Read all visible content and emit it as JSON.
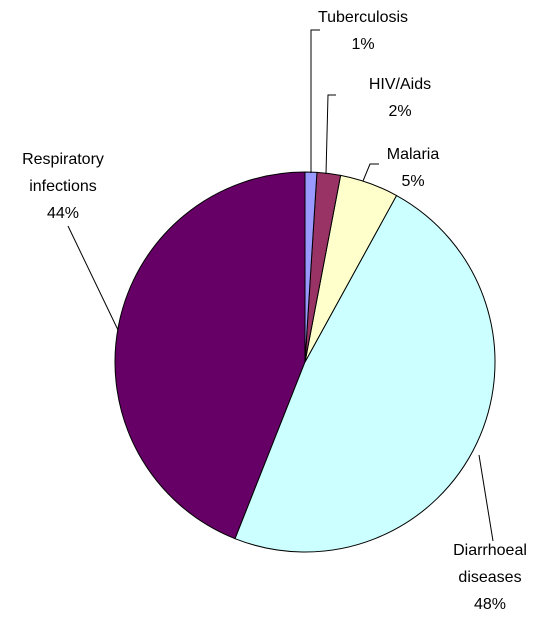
{
  "chart_data": {
    "type": "pie",
    "categories": [
      "Tuberculosis",
      "HIV/Aids",
      "Malaria",
      "Diarrhoeal diseases",
      "Respiratory infections"
    ],
    "values": [
      1,
      2,
      5,
      48,
      44
    ],
    "value_labels": [
      "1%",
      "2%",
      "5%",
      "48%",
      "44%"
    ],
    "colors": [
      "#9999ff",
      "#993366",
      "#ffffcc",
      "#ccffff",
      "#660066"
    ]
  }
}
